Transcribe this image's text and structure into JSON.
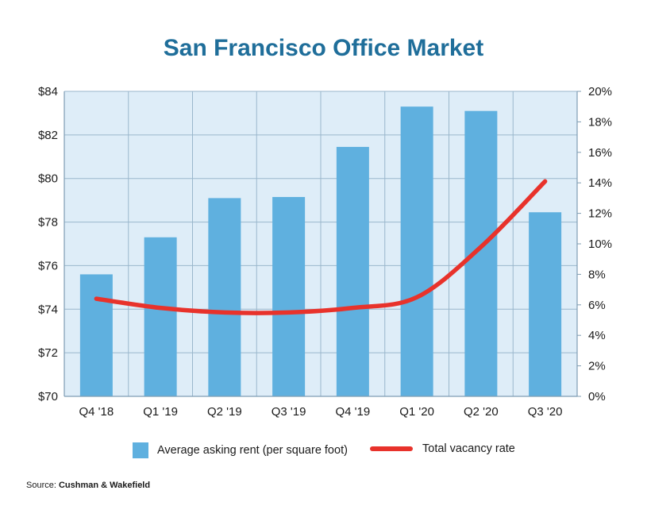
{
  "colors": {
    "title": "#1f6e9a",
    "plot_bg": "#deedf8",
    "grid": "#9ab7cc",
    "bar": "#5fb0df",
    "line": "#e8322b"
  },
  "chart_data": {
    "type": "bar",
    "title": "San Francisco Office Market",
    "categories": [
      "Q4 '18",
      "Q1 '19",
      "Q2 '19",
      "Q3 '19",
      "Q4 '19",
      "Q1 '20",
      "Q2 '20",
      "Q3 '20"
    ],
    "series": [
      {
        "name": "Average asking rent (per square foot)",
        "type": "bar",
        "axis": "left",
        "values": [
          75.6,
          77.3,
          79.1,
          79.15,
          81.45,
          83.3,
          83.1,
          78.45
        ]
      },
      {
        "name": "Total vacancy rate",
        "type": "line",
        "axis": "right",
        "values": [
          6.4,
          5.8,
          5.5,
          5.5,
          5.8,
          6.5,
          9.8,
          14.1
        ]
      }
    ],
    "ylim_left": [
      70,
      84
    ],
    "yticks_left": [
      "$70",
      "$72",
      "$74",
      "$76",
      "$78",
      "$80",
      "$82",
      "$84"
    ],
    "ylim_right": [
      0,
      20
    ],
    "yticks_right": [
      "0%",
      "2%",
      "4%",
      "6%",
      "8%",
      "10%",
      "12%",
      "14%",
      "16%",
      "18%",
      "20%"
    ],
    "grid": true,
    "legend_position": "bottom"
  },
  "legend": {
    "bar_label": "Average asking rent (per square foot)",
    "line_label": "Total vacancy rate"
  },
  "source": {
    "prefix": "Source: ",
    "name": "Cushman & Wakefield"
  }
}
